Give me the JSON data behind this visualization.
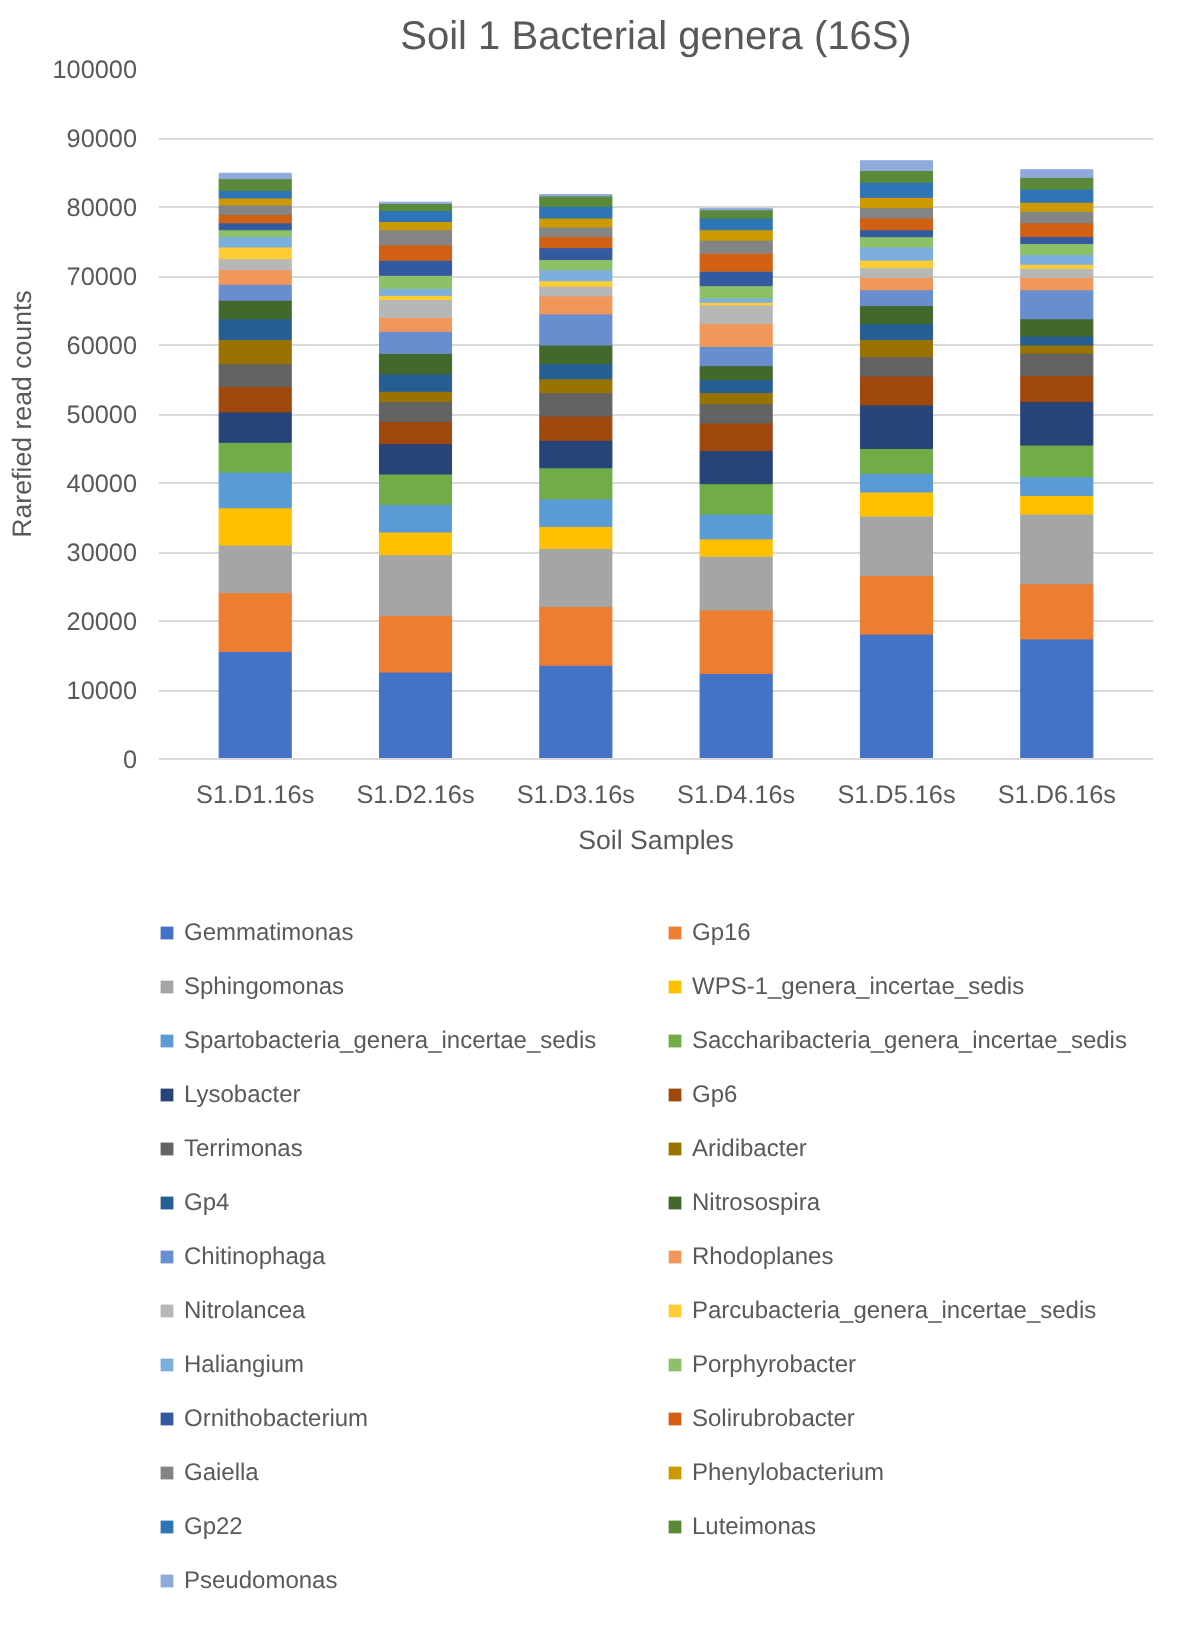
{
  "chart_data": {
    "type": "bar",
    "stacked": true,
    "title": "Soil 1 Bacterial genera (16S)",
    "xlabel": "Soil Samples",
    "ylabel": "Rarefied read counts",
    "categories": [
      "S1.D1.16s",
      "S1.D2.16s",
      "S1.D3.16s",
      "S1.D4.16s",
      "S1.D5.16s",
      "S1.D6.16s"
    ],
    "ylim": [
      0,
      100000
    ],
    "yticks": [
      0,
      10000,
      20000,
      30000,
      40000,
      50000,
      60000,
      70000,
      80000,
      90000,
      100000
    ],
    "grid": "y",
    "legend": "bottom",
    "series": [
      {
        "name": "Gemmatimonas",
        "color": "#4472c4",
        "values": [
          15600,
          12600,
          13600,
          12400,
          18100,
          17400
        ]
      },
      {
        "name": "Gp16",
        "color": "#ed7d31",
        "values": [
          8500,
          8200,
          8500,
          9200,
          8500,
          8000
        ]
      },
      {
        "name": "Sphingomonas",
        "color": "#a5a5a5",
        "values": [
          6900,
          8800,
          8400,
          7800,
          8600,
          10100
        ]
      },
      {
        "name": "WPS-1_genera_incertae_sedis",
        "color": "#ffc000",
        "values": [
          5400,
          3300,
          3200,
          2500,
          3500,
          2700
        ]
      },
      {
        "name": "Spartobacteria_genera_incertae_sedis",
        "color": "#5b9bd5",
        "values": [
          5200,
          4000,
          4000,
          3600,
          2700,
          2700
        ]
      },
      {
        "name": "Saccharibacteria_genera_incertae_sedis",
        "color": "#70ad47",
        "values": [
          4300,
          4400,
          4500,
          4400,
          3600,
          4600
        ]
      },
      {
        "name": "Lysobacter",
        "color": "#264478",
        "values": [
          4400,
          4400,
          4000,
          4800,
          6300,
          6300
        ]
      },
      {
        "name": "Gp6",
        "color": "#9e480e",
        "values": [
          3700,
          3200,
          3500,
          4000,
          4200,
          3800
        ]
      },
      {
        "name": "Terrimonas",
        "color": "#636363",
        "values": [
          3300,
          2900,
          3400,
          2800,
          2800,
          3200
        ]
      },
      {
        "name": "Aridibacter",
        "color": "#997300",
        "values": [
          3500,
          1500,
          2000,
          1600,
          2500,
          1200
        ]
      },
      {
        "name": "Gp4",
        "color": "#255e91",
        "values": [
          3000,
          2500,
          2200,
          1900,
          2300,
          1300
        ]
      },
      {
        "name": "Nitrosospira",
        "color": "#43682b",
        "values": [
          2700,
          3000,
          2700,
          2000,
          2600,
          2500
        ]
      },
      {
        "name": "Chitinophaga",
        "color": "#698ed0",
        "values": [
          2300,
          3200,
          4500,
          2800,
          2300,
          4200
        ]
      },
      {
        "name": "Rhodoplanes",
        "color": "#f1975a",
        "values": [
          2100,
          2000,
          2600,
          3300,
          1800,
          1800
        ]
      },
      {
        "name": "Nitrolancea",
        "color": "#b7b7b7",
        "values": [
          1600,
          2600,
          1400,
          2700,
          1400,
          1300
        ]
      },
      {
        "name": "Parcubacteria_genera_incertae_sedis",
        "color": "#ffcd33",
        "values": [
          1700,
          600,
          800,
          400,
          1100,
          600
        ]
      },
      {
        "name": "Haliangium",
        "color": "#7cafdd",
        "values": [
          1500,
          1000,
          1600,
          600,
          1900,
          1400
        ]
      },
      {
        "name": "Porphyrobacter",
        "color": "#8cc168",
        "values": [
          1000,
          1900,
          1500,
          1800,
          1500,
          1600
        ]
      },
      {
        "name": "Ornithobacterium",
        "color": "#335aa1",
        "values": [
          1000,
          2200,
          1700,
          2100,
          1000,
          1000
        ]
      },
      {
        "name": "Solirubrobacter",
        "color": "#d26012",
        "values": [
          1200,
          2200,
          1600,
          2600,
          1700,
          2000
        ]
      },
      {
        "name": "Gaiella",
        "color": "#848484",
        "values": [
          1400,
          2200,
          1400,
          1900,
          1500,
          1700
        ]
      },
      {
        "name": "Phenylobacterium",
        "color": "#cc9a00",
        "values": [
          1000,
          1200,
          1300,
          1500,
          1500,
          1300
        ]
      },
      {
        "name": "Gp22",
        "color": "#2e75b6",
        "values": [
          1100,
          1600,
          1700,
          1700,
          2200,
          1900
        ]
      },
      {
        "name": "Luteimonas",
        "color": "#5a8a39",
        "values": [
          1700,
          1000,
          1500,
          1200,
          1700,
          1700
        ]
      },
      {
        "name": "Pseudomonas",
        "color": "#8faadc",
        "values": [
          800,
          200,
          200,
          200,
          1400,
          1100
        ]
      }
    ]
  }
}
